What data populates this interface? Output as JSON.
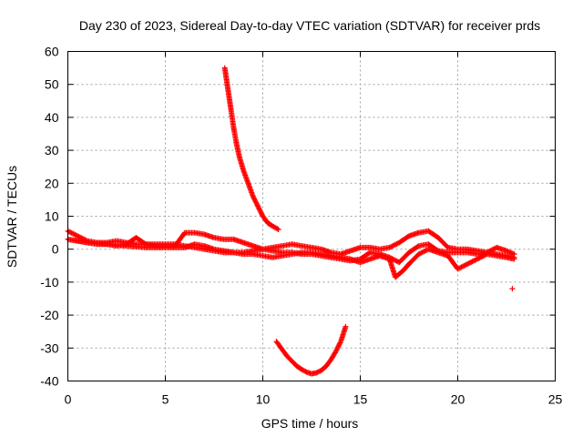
{
  "chart_data": {
    "type": "scatter",
    "title": "Day 230 of 2023, Sidereal Day-to-day VTEC variation (SDTVAR) for receiver prds",
    "xlabel": "GPS time / hours",
    "ylabel": "SDTVAR / TECUs",
    "xlim": [
      0,
      25
    ],
    "ylim": [
      -40,
      60
    ],
    "xticks": [
      0,
      5,
      10,
      15,
      20,
      25
    ],
    "yticks": [
      -40,
      -30,
      -20,
      -10,
      0,
      10,
      20,
      30,
      40,
      50,
      60
    ],
    "grid": true,
    "marker": "+",
    "color": "#ff0000",
    "series": [
      {
        "name": "track-a",
        "points": [
          [
            0,
            5.5
          ],
          [
            0.5,
            4
          ],
          [
            1,
            2.5
          ],
          [
            1.5,
            2
          ],
          [
            2,
            2
          ],
          [
            2.5,
            2.5
          ],
          [
            3,
            2
          ],
          [
            3.5,
            1.5
          ],
          [
            4,
            1.5
          ],
          [
            4.5,
            1.5
          ],
          [
            5,
            1.5
          ],
          [
            5.5,
            1.5
          ],
          [
            6,
            1
          ],
          [
            6.5,
            0.5
          ],
          [
            7,
            0
          ],
          [
            7.5,
            -0.5
          ],
          [
            8,
            -1
          ],
          [
            8.5,
            -1
          ],
          [
            9,
            -1.5
          ],
          [
            9.5,
            -1.5
          ],
          [
            10,
            -2
          ],
          [
            10.5,
            -2.5
          ],
          [
            11,
            -2
          ],
          [
            11.5,
            -1.5
          ],
          [
            12,
            -1
          ],
          [
            12.5,
            -1
          ],
          [
            13,
            -1.5
          ],
          [
            13.5,
            -2
          ],
          [
            14,
            -2.5
          ],
          [
            14.5,
            -3
          ],
          [
            15,
            -4
          ],
          [
            15.5,
            -3
          ],
          [
            16,
            -2
          ],
          [
            16.5,
            -3
          ],
          [
            16.8,
            -8.5
          ],
          [
            17.2,
            -6.5
          ],
          [
            17.5,
            -4.5
          ],
          [
            18,
            -1.5
          ],
          [
            18.5,
            0
          ],
          [
            19,
            -1
          ],
          [
            19.5,
            -2
          ],
          [
            20,
            -6
          ],
          [
            20.5,
            -4.5
          ],
          [
            21,
            -3
          ],
          [
            21.5,
            -1.5
          ],
          [
            22,
            -2
          ],
          [
            22.5,
            -2.5
          ],
          [
            22.9,
            -3
          ]
        ]
      },
      {
        "name": "track-b",
        "points": [
          [
            0,
            3
          ],
          [
            0.5,
            2.5
          ],
          [
            1,
            2
          ],
          [
            1.5,
            1.5
          ],
          [
            2,
            1.5
          ],
          [
            2.5,
            1
          ],
          [
            3,
            1.5
          ],
          [
            3.5,
            3.5
          ],
          [
            4,
            1.5
          ],
          [
            4.5,
            1
          ],
          [
            5,
            1
          ],
          [
            5.5,
            1
          ],
          [
            6,
            5
          ],
          [
            6.5,
            5
          ],
          [
            7,
            4.5
          ],
          [
            7.5,
            3.5
          ],
          [
            8,
            3
          ],
          [
            8.5,
            3
          ],
          [
            9,
            2
          ],
          [
            9.5,
            1
          ],
          [
            10,
            0
          ],
          [
            10.5,
            0.5
          ],
          [
            11,
            1
          ],
          [
            11.5,
            1.5
          ],
          [
            12,
            1
          ],
          [
            12.5,
            0.5
          ],
          [
            13,
            0
          ],
          [
            13.5,
            -1
          ],
          [
            14,
            -1.5
          ],
          [
            14.5,
            -0.5
          ],
          [
            15,
            0.5
          ],
          [
            15.5,
            0.5
          ],
          [
            16,
            0
          ],
          [
            16.5,
            0.5
          ],
          [
            17,
            2
          ],
          [
            17.5,
            4
          ],
          [
            18,
            5
          ],
          [
            18.5,
            5.5
          ],
          [
            19,
            3.5
          ],
          [
            19.5,
            0.5
          ],
          [
            20,
            0
          ],
          [
            20.5,
            0
          ],
          [
            21,
            -0.5
          ],
          [
            21.5,
            -1
          ],
          [
            22,
            0.5
          ],
          [
            22.5,
            -0.5
          ],
          [
            22.9,
            -1.5
          ]
        ]
      },
      {
        "name": "track-c",
        "points": [
          [
            0,
            3
          ],
          [
            1,
            2
          ],
          [
            2,
            1.5
          ],
          [
            3,
            1
          ],
          [
            4,
            0.5
          ],
          [
            5,
            0.5
          ],
          [
            6,
            0.5
          ],
          [
            6.5,
            1.5
          ],
          [
            7,
            1
          ],
          [
            7.5,
            0
          ],
          [
            8,
            -0.5
          ],
          [
            8.5,
            -1
          ],
          [
            9,
            -1
          ],
          [
            9.5,
            -0.5
          ],
          [
            10,
            0
          ],
          [
            10.5,
            -0.5
          ],
          [
            11,
            -1
          ],
          [
            11.5,
            -1
          ],
          [
            12,
            -1.5
          ],
          [
            12.5,
            -1.5
          ],
          [
            13,
            -2
          ],
          [
            13.5,
            -2.5
          ],
          [
            14,
            -3
          ],
          [
            14.5,
            -3.5
          ],
          [
            15,
            -3
          ],
          [
            15.5,
            -1
          ],
          [
            16,
            -1.5
          ],
          [
            16.5,
            -2.5
          ],
          [
            17,
            -4
          ],
          [
            17.5,
            -1
          ],
          [
            18,
            1
          ],
          [
            18.5,
            1.5
          ],
          [
            19,
            -0.5
          ],
          [
            19.5,
            -1
          ],
          [
            20,
            -1
          ],
          [
            20.5,
            -1
          ],
          [
            21,
            -1.5
          ],
          [
            21.5,
            -1
          ],
          [
            22,
            -1.5
          ],
          [
            22.5,
            -2
          ],
          [
            22.9,
            -2.5
          ]
        ]
      },
      {
        "name": "pass-descending",
        "points": [
          [
            8.05,
            55
          ],
          [
            8.15,
            51
          ],
          [
            8.25,
            47
          ],
          [
            8.35,
            43
          ],
          [
            8.5,
            37
          ],
          [
            8.65,
            32
          ],
          [
            8.8,
            28
          ],
          [
            9,
            24
          ],
          [
            9.25,
            20
          ],
          [
            9.5,
            16
          ],
          [
            9.75,
            13
          ],
          [
            10,
            10
          ],
          [
            10.25,
            8
          ],
          [
            10.5,
            7
          ],
          [
            10.8,
            6
          ]
        ]
      },
      {
        "name": "pass-negative-arc",
        "points": [
          [
            10.7,
            -28
          ],
          [
            11,
            -30.5
          ],
          [
            11.25,
            -32.5
          ],
          [
            11.5,
            -34
          ],
          [
            11.75,
            -35.5
          ],
          [
            12,
            -36.5
          ],
          [
            12.25,
            -37.3
          ],
          [
            12.5,
            -37.8
          ],
          [
            12.75,
            -37.5
          ],
          [
            13,
            -36.8
          ],
          [
            13.25,
            -35.5
          ],
          [
            13.5,
            -33.5
          ],
          [
            13.75,
            -31
          ],
          [
            14,
            -28
          ],
          [
            14.25,
            -23.5
          ]
        ]
      },
      {
        "name": "isolated-point",
        "points": [
          [
            22.8,
            -12
          ]
        ]
      }
    ]
  }
}
